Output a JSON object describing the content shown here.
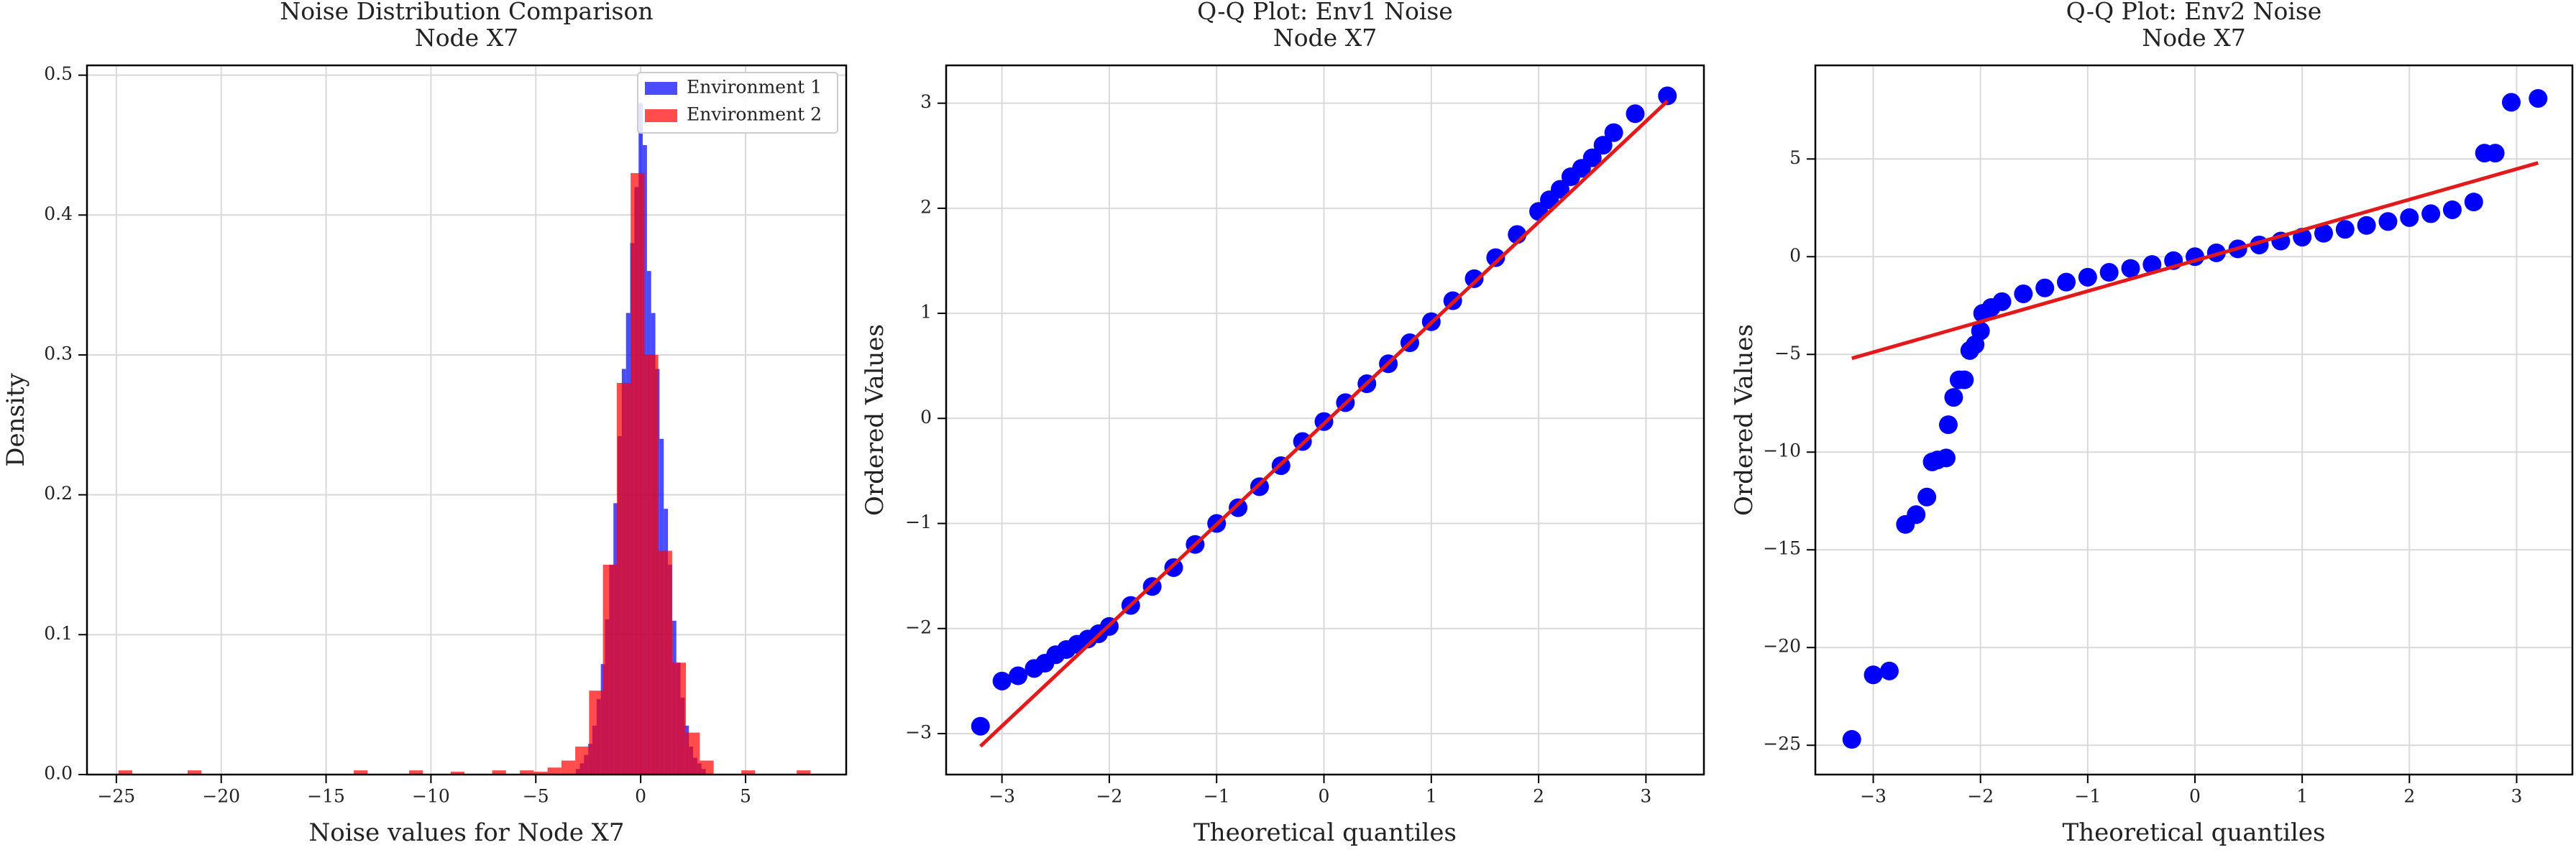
{
  "chart_data": [
    {
      "type": "histogram",
      "title": "Noise Distribution Comparison",
      "subtitle": "Node X7",
      "x_label": "Noise values for Node X7",
      "y_label": "Density",
      "xlim": [
        -26.4,
        9.8
      ],
      "ylim": [
        0,
        0.507
      ],
      "xticks": [
        {
          "value": -25,
          "label": "−25"
        },
        {
          "value": -20,
          "label": "−20"
        },
        {
          "value": -15,
          "label": "−15"
        },
        {
          "value": -10,
          "label": "−10"
        },
        {
          "value": -5,
          "label": "−5"
        },
        0,
        5
      ],
      "yticks": [
        {
          "value": 0,
          "label": "0.0"
        },
        0.1,
        0.2,
        0.3,
        0.4,
        0.5
      ],
      "grid": true,
      "legend": "upper right",
      "alpha": 0.7,
      "series": [
        {
          "name": "Environment 1",
          "color": "#0000ff",
          "bins": [
            -3.1,
            -2.9,
            -2.7,
            -2.5,
            -2.3,
            -2.1,
            -1.9,
            -1.7,
            -1.5,
            -1.3,
            -1.1,
            -0.9,
            -0.7,
            -0.5,
            -0.3,
            -0.1,
            0.1,
            0.3,
            0.5,
            0.7,
            0.9,
            1.1,
            1.3,
            1.5,
            1.7,
            1.9,
            2.1,
            2.3,
            2.5,
            2.7,
            2.9,
            3.1
          ],
          "values": [
            0.004,
            0.008,
            0.014,
            0.022,
            0.035,
            0.054,
            0.079,
            0.111,
            0.15,
            0.194,
            0.242,
            0.29,
            0.33,
            0.38,
            0.42,
            0.48,
            0.45,
            0.36,
            0.33,
            0.29,
            0.24,
            0.19,
            0.15,
            0.11,
            0.08,
            0.055,
            0.035,
            0.02,
            0.012,
            0.008,
            0.004
          ]
        },
        {
          "name": "Environment 2",
          "color": "#ff0000",
          "bins": [
            -24.9,
            -24.24,
            -23.58,
            -22.92,
            -22.26,
            -21.6,
            -20.94,
            -20.28,
            -19.62,
            -18.96,
            -18.3,
            -17.64,
            -16.98,
            -16.32,
            -15.66,
            -15.0,
            -14.34,
            -13.68,
            -13.02,
            -12.36,
            -11.7,
            -11.04,
            -10.38,
            -9.72,
            -9.06,
            -8.4,
            -7.74,
            -7.08,
            -6.42,
            -5.76,
            -5.1,
            -4.44,
            -3.78,
            -3.12,
            -2.46,
            -1.8,
            -1.14,
            -0.48,
            0.18,
            0.84,
            1.5,
            2.16,
            2.82,
            3.48,
            4.14,
            4.8,
            5.46,
            6.12,
            6.78,
            7.44,
            8.1
          ],
          "values": [
            0.003,
            0,
            0,
            0,
            0,
            0.003,
            0,
            0,
            0,
            0,
            0,
            0,
            0,
            0,
            0,
            0,
            0,
            0.003,
            0,
            0,
            0,
            0.003,
            0,
            0,
            0.002,
            0,
            0,
            0.003,
            0,
            0.003,
            0.002,
            0.005,
            0.01,
            0.02,
            0.06,
            0.15,
            0.28,
            0.43,
            0.3,
            0.16,
            0.08,
            0.03,
            0.01,
            0,
            0,
            0.003,
            0,
            0,
            0,
            0.003
          ]
        }
      ]
    },
    {
      "type": "qq",
      "title": "Q-Q Plot: Env1 Noise",
      "subtitle": "Node X7",
      "x_label": "Theoretical quantiles",
      "y_label": "Ordered Values",
      "xlim": [
        -3.52,
        3.54
      ],
      "ylim": [
        -3.39,
        3.36
      ],
      "xticks": [
        {
          "value": -3,
          "label": "−3"
        },
        {
          "value": -2,
          "label": "−2"
        },
        {
          "value": -1,
          "label": "−1"
        },
        0,
        1,
        2,
        3
      ],
      "yticks": [
        {
          "value": -3,
          "label": "−3"
        },
        {
          "value": -2,
          "label": "−2"
        },
        {
          "value": -1,
          "label": "−1"
        },
        0,
        1,
        2,
        3
      ],
      "grid": true,
      "points": {
        "color": "#0000ff",
        "x": [
          -3.2,
          -3.0,
          -2.85,
          -2.7,
          -2.6,
          -2.5,
          -2.4,
          -2.3,
          -2.2,
          -2.1,
          -2.0,
          -1.8,
          -1.6,
          -1.4,
          -1.2,
          -1.0,
          -0.8,
          -0.6,
          -0.4,
          -0.2,
          0,
          0.2,
          0.4,
          0.6,
          0.8,
          1.0,
          1.2,
          1.4,
          1.6,
          1.8,
          2.0,
          2.1,
          2.2,
          2.3,
          2.4,
          2.5,
          2.6,
          2.7,
          2.9,
          3.2
        ],
        "y": [
          -2.93,
          -2.5,
          -2.45,
          -2.38,
          -2.33,
          -2.25,
          -2.2,
          -2.15,
          -2.1,
          -2.05,
          -1.98,
          -1.78,
          -1.6,
          -1.42,
          -1.2,
          -1.0,
          -0.85,
          -0.65,
          -0.45,
          -0.22,
          -0.03,
          0.15,
          0.33,
          0.52,
          0.72,
          0.92,
          1.12,
          1.33,
          1.53,
          1.75,
          1.97,
          2.08,
          2.18,
          2.3,
          2.38,
          2.48,
          2.6,
          2.72,
          2.9,
          3.07
        ]
      },
      "fit_line": {
        "color": "#e31a1c",
        "x": [
          -3.2,
          3.2
        ],
        "y": [
          -3.12,
          3.02
        ]
      }
    },
    {
      "type": "qq",
      "title": "Q-Q Plot: Env2 Noise",
      "subtitle": "Node X7",
      "x_label": "Theoretical quantiles",
      "y_label": "Ordered Values",
      "xlim": [
        -3.54,
        3.52
      ],
      "ylim": [
        -26.5,
        9.79
      ],
      "xticks": [
        {
          "value": -3,
          "label": "−3"
        },
        {
          "value": -2,
          "label": "−2"
        },
        {
          "value": -1,
          "label": "−1"
        },
        0,
        1,
        2,
        3
      ],
      "yticks": [
        {
          "value": -25,
          "label": "−25"
        },
        {
          "value": -20,
          "label": "−20"
        },
        {
          "value": -15,
          "label": "−15"
        },
        {
          "value": -10,
          "label": "−10"
        },
        {
          "value": -5,
          "label": "−5"
        },
        0,
        5
      ],
      "grid": true,
      "points": {
        "color": "#0000ff",
        "x": [
          -3.2,
          -3.0,
          -2.85,
          -2.7,
          -2.6,
          -2.5,
          -2.45,
          -2.4,
          -2.32,
          -2.3,
          -2.25,
          -2.2,
          -2.15,
          -2.1,
          -2.05,
          -2.0,
          -1.98,
          -1.9,
          -1.8,
          -1.6,
          -1.4,
          -1.2,
          -1.0,
          -0.8,
          -0.6,
          -0.4,
          -0.2,
          0,
          0.2,
          0.4,
          0.6,
          0.8,
          1.0,
          1.2,
          1.4,
          1.6,
          1.8,
          2.0,
          2.2,
          2.4,
          2.6,
          2.7,
          2.8,
          2.95,
          3.2
        ],
        "y": [
          -24.7,
          -21.4,
          -21.2,
          -13.7,
          -13.2,
          -12.3,
          -10.5,
          -10.4,
          -10.3,
          -8.6,
          -7.2,
          -6.3,
          -6.3,
          -4.8,
          -4.5,
          -3.8,
          -2.9,
          -2.6,
          -2.3,
          -1.9,
          -1.6,
          -1.3,
          -1.05,
          -0.8,
          -0.6,
          -0.4,
          -0.2,
          0,
          0.2,
          0.4,
          0.6,
          0.8,
          1.0,
          1.2,
          1.4,
          1.6,
          1.8,
          2.0,
          2.2,
          2.4,
          2.8,
          5.3,
          5.3,
          7.9,
          8.1
        ]
      },
      "fit_line": {
        "color": "#e31a1c",
        "x": [
          -3.2,
          3.2
        ],
        "y": [
          -5.2,
          4.8
        ]
      }
    }
  ]
}
